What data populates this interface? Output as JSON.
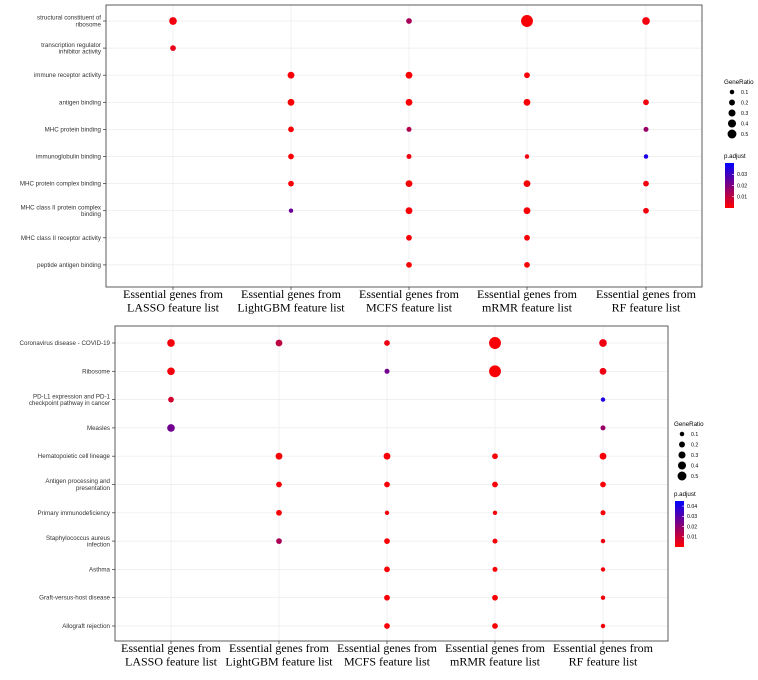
{
  "chart_data": [
    {
      "type": "scatter",
      "title": "",
      "xlabel": "",
      "ylabel": "",
      "categories": [
        [
          "Essential genes from",
          "LASSO feature list"
        ],
        [
          "Essential genes from",
          "LightGBM feature list"
        ],
        [
          "Essential genes from",
          "MCFS feature list"
        ],
        [
          "Essential genes from",
          "mRMR feature list"
        ],
        [
          "Essential genes from",
          "RF feature list"
        ]
      ],
      "terms": [
        [
          "structural constituent of",
          "ribosome"
        ],
        [
          "transcription regulator",
          "inhibitor activity"
        ],
        [
          "immune receptor activity"
        ],
        [
          "antigen binding"
        ],
        [
          "MHC protein binding"
        ],
        [
          "immunoglobulin binding"
        ],
        [
          "MHC protein complex binding"
        ],
        [
          "MHC class II protein complex",
          "binding"
        ],
        [
          "MHC class II receptor activity"
        ],
        [
          "peptide antigen binding"
        ]
      ],
      "points": [
        {
          "x": 0,
          "y": 0,
          "gene_ratio": 0.2,
          "p_adjust": 0.002
        },
        {
          "x": 2,
          "y": 0,
          "gene_ratio": 0.1,
          "p_adjust": 0.014
        },
        {
          "x": 3,
          "y": 0,
          "gene_ratio": 0.55,
          "p_adjust": 0.001
        },
        {
          "x": 4,
          "y": 0,
          "gene_ratio": 0.2,
          "p_adjust": 0.002
        },
        {
          "x": 0,
          "y": 1,
          "gene_ratio": 0.1,
          "p_adjust": 0.004
        },
        {
          "x": 1,
          "y": 2,
          "gene_ratio": 0.15,
          "p_adjust": 0.001
        },
        {
          "x": 2,
          "y": 2,
          "gene_ratio": 0.15,
          "p_adjust": 0.001
        },
        {
          "x": 3,
          "y": 2,
          "gene_ratio": 0.1,
          "p_adjust": 0.001
        },
        {
          "x": 1,
          "y": 3,
          "gene_ratio": 0.15,
          "p_adjust": 0.001
        },
        {
          "x": 2,
          "y": 3,
          "gene_ratio": 0.15,
          "p_adjust": 0.001
        },
        {
          "x": 3,
          "y": 3,
          "gene_ratio": 0.15,
          "p_adjust": 0.001
        },
        {
          "x": 4,
          "y": 3,
          "gene_ratio": 0.1,
          "p_adjust": 0.002
        },
        {
          "x": 1,
          "y": 4,
          "gene_ratio": 0.1,
          "p_adjust": 0.001
        },
        {
          "x": 2,
          "y": 4,
          "gene_ratio": 0.07,
          "p_adjust": 0.012
        },
        {
          "x": 4,
          "y": 4,
          "gene_ratio": 0.07,
          "p_adjust": 0.016
        },
        {
          "x": 1,
          "y": 5,
          "gene_ratio": 0.1,
          "p_adjust": 0.001
        },
        {
          "x": 2,
          "y": 5,
          "gene_ratio": 0.07,
          "p_adjust": 0.002
        },
        {
          "x": 3,
          "y": 5,
          "gene_ratio": 0.05,
          "p_adjust": 0.002
        },
        {
          "x": 4,
          "y": 5,
          "gene_ratio": 0.05,
          "p_adjust": 0.036
        },
        {
          "x": 1,
          "y": 6,
          "gene_ratio": 0.1,
          "p_adjust": 0.001
        },
        {
          "x": 2,
          "y": 6,
          "gene_ratio": 0.15,
          "p_adjust": 0.001
        },
        {
          "x": 3,
          "y": 6,
          "gene_ratio": 0.15,
          "p_adjust": 0.001
        },
        {
          "x": 4,
          "y": 6,
          "gene_ratio": 0.1,
          "p_adjust": 0.002
        },
        {
          "x": 1,
          "y": 7,
          "gene_ratio": 0.05,
          "p_adjust": 0.024
        },
        {
          "x": 2,
          "y": 7,
          "gene_ratio": 0.15,
          "p_adjust": 0.001
        },
        {
          "x": 3,
          "y": 7,
          "gene_ratio": 0.15,
          "p_adjust": 0.001
        },
        {
          "x": 4,
          "y": 7,
          "gene_ratio": 0.1,
          "p_adjust": 0.002
        },
        {
          "x": 2,
          "y": 8,
          "gene_ratio": 0.1,
          "p_adjust": 0.001
        },
        {
          "x": 3,
          "y": 8,
          "gene_ratio": 0.1,
          "p_adjust": 0.001
        },
        {
          "x": 2,
          "y": 9,
          "gene_ratio": 0.1,
          "p_adjust": 0.001
        },
        {
          "x": 3,
          "y": 9,
          "gene_ratio": 0.1,
          "p_adjust": 0.001
        }
      ],
      "size_legend": {
        "title": "GeneRatio",
        "values": [
          0.1,
          0.2,
          0.3,
          0.4,
          0.5
        ],
        "labels": [
          "0.1",
          "0.2",
          "0.3",
          "0.4",
          "0.5"
        ]
      },
      "color_legend": {
        "title": "p.adjust",
        "range": [
          0,
          0.04
        ],
        "ticks": [
          0.03,
          0.02,
          0.01
        ],
        "tick_labels": [
          "0.03",
          "0.02",
          "0.01"
        ],
        "low_color": "#ff0000",
        "high_color": "#0000ff"
      }
    },
    {
      "type": "scatter",
      "title": "",
      "xlabel": "",
      "ylabel": "",
      "categories": [
        [
          "Essential genes from",
          "LASSO feature list"
        ],
        [
          "Essential genes from",
          "LightGBM feature list"
        ],
        [
          "Essential genes from",
          "MCFS feature list"
        ],
        [
          "Essential genes from",
          "mRMR feature list"
        ],
        [
          "Essential genes from",
          "RF feature list"
        ]
      ],
      "terms": [
        [
          "Coronavirus disease - COVID-19"
        ],
        [
          "Ribosome"
        ],
        [
          "PD-L1 expression and PD-1",
          "checkpoint pathway in cancer"
        ],
        [
          "Measles"
        ],
        [
          "Hematopoietic cell lineage"
        ],
        [
          "Antigen processing and",
          "presentation"
        ],
        [
          "Primary immunodeficiency"
        ],
        [
          "Staphylococcus aureus",
          "infection"
        ],
        [
          "Asthma"
        ],
        [
          "Graft-versus-host disease"
        ],
        [
          "Allograft rejection"
        ]
      ],
      "points": [
        {
          "x": 0,
          "y": 0,
          "gene_ratio": 0.2,
          "p_adjust": 0.002
        },
        {
          "x": 1,
          "y": 0,
          "gene_ratio": 0.15,
          "p_adjust": 0.012
        },
        {
          "x": 2,
          "y": 0,
          "gene_ratio": 0.1,
          "p_adjust": 0.003
        },
        {
          "x": 3,
          "y": 0,
          "gene_ratio": 0.55,
          "p_adjust": 0.001
        },
        {
          "x": 4,
          "y": 0,
          "gene_ratio": 0.2,
          "p_adjust": 0.003
        },
        {
          "x": 0,
          "y": 1,
          "gene_ratio": 0.2,
          "p_adjust": 0.002
        },
        {
          "x": 2,
          "y": 1,
          "gene_ratio": 0.07,
          "p_adjust": 0.025
        },
        {
          "x": 3,
          "y": 1,
          "gene_ratio": 0.55,
          "p_adjust": 0.001
        },
        {
          "x": 4,
          "y": 1,
          "gene_ratio": 0.15,
          "p_adjust": 0.003
        },
        {
          "x": 0,
          "y": 2,
          "gene_ratio": 0.1,
          "p_adjust": 0.008
        },
        {
          "x": 4,
          "y": 2,
          "gene_ratio": 0.05,
          "p_adjust": 0.04
        },
        {
          "x": 0,
          "y": 3,
          "gene_ratio": 0.2,
          "p_adjust": 0.025
        },
        {
          "x": 4,
          "y": 3,
          "gene_ratio": 0.07,
          "p_adjust": 0.018
        },
        {
          "x": 1,
          "y": 4,
          "gene_ratio": 0.15,
          "p_adjust": 0.001
        },
        {
          "x": 2,
          "y": 4,
          "gene_ratio": 0.15,
          "p_adjust": 0.001
        },
        {
          "x": 3,
          "y": 4,
          "gene_ratio": 0.1,
          "p_adjust": 0.001
        },
        {
          "x": 4,
          "y": 4,
          "gene_ratio": 0.15,
          "p_adjust": 0.001
        },
        {
          "x": 1,
          "y": 5,
          "gene_ratio": 0.1,
          "p_adjust": 0.001
        },
        {
          "x": 2,
          "y": 5,
          "gene_ratio": 0.1,
          "p_adjust": 0.001
        },
        {
          "x": 3,
          "y": 5,
          "gene_ratio": 0.1,
          "p_adjust": 0.001
        },
        {
          "x": 4,
          "y": 5,
          "gene_ratio": 0.1,
          "p_adjust": 0.001
        },
        {
          "x": 1,
          "y": 6,
          "gene_ratio": 0.1,
          "p_adjust": 0.001
        },
        {
          "x": 2,
          "y": 6,
          "gene_ratio": 0.05,
          "p_adjust": 0.002
        },
        {
          "x": 3,
          "y": 6,
          "gene_ratio": 0.05,
          "p_adjust": 0.002
        },
        {
          "x": 4,
          "y": 6,
          "gene_ratio": 0.07,
          "p_adjust": 0.001
        },
        {
          "x": 1,
          "y": 7,
          "gene_ratio": 0.1,
          "p_adjust": 0.015
        },
        {
          "x": 2,
          "y": 7,
          "gene_ratio": 0.1,
          "p_adjust": 0.001
        },
        {
          "x": 3,
          "y": 7,
          "gene_ratio": 0.07,
          "p_adjust": 0.001
        },
        {
          "x": 4,
          "y": 7,
          "gene_ratio": 0.05,
          "p_adjust": 0.003
        },
        {
          "x": 2,
          "y": 8,
          "gene_ratio": 0.1,
          "p_adjust": 0.001
        },
        {
          "x": 3,
          "y": 8,
          "gene_ratio": 0.07,
          "p_adjust": 0.001
        },
        {
          "x": 4,
          "y": 8,
          "gene_ratio": 0.05,
          "p_adjust": 0.002
        },
        {
          "x": 2,
          "y": 9,
          "gene_ratio": 0.1,
          "p_adjust": 0.001
        },
        {
          "x": 3,
          "y": 9,
          "gene_ratio": 0.1,
          "p_adjust": 0.001
        },
        {
          "x": 4,
          "y": 9,
          "gene_ratio": 0.05,
          "p_adjust": 0.002
        },
        {
          "x": 2,
          "y": 10,
          "gene_ratio": 0.1,
          "p_adjust": 0.001
        },
        {
          "x": 3,
          "y": 10,
          "gene_ratio": 0.1,
          "p_adjust": 0.001
        },
        {
          "x": 4,
          "y": 10,
          "gene_ratio": 0.05,
          "p_adjust": 0.002
        }
      ],
      "size_legend": {
        "title": "GeneRatio",
        "values": [
          0.1,
          0.2,
          0.3,
          0.4,
          0.5
        ],
        "labels": [
          "0.1",
          "0.2",
          "0.3",
          "0.4",
          "0.5"
        ]
      },
      "color_legend": {
        "title": "p.adjust",
        "range": [
          0,
          0.045
        ],
        "ticks": [
          0.04,
          0.03,
          0.02,
          0.01
        ],
        "tick_labels": [
          "0.04",
          "0.03",
          "0.02",
          "0.01"
        ],
        "low_color": "#ff0000",
        "high_color": "#0000ff"
      }
    }
  ]
}
